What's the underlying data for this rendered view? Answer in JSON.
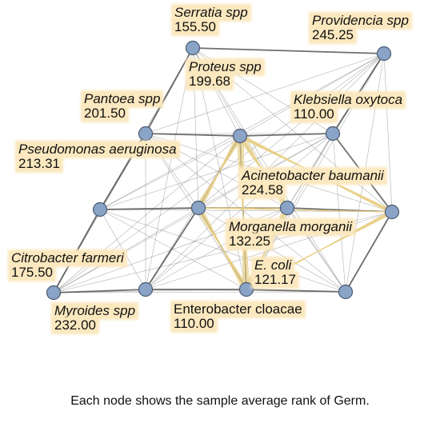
{
  "caption": "Each node shows the sample average rank of Germ.",
  "nodes": [
    {
      "id": "serratia",
      "name": "Serratia spp",
      "value": "155.50"
    },
    {
      "id": "providencia",
      "name": "Providencia spp",
      "value": "245.25"
    },
    {
      "id": "proteus",
      "name": "Proteus spp",
      "value": "199.68"
    },
    {
      "id": "pantoea",
      "name": "Pantoea spp",
      "value": "201.50"
    },
    {
      "id": "klebsiella",
      "name": "Klebsiella oxytoca",
      "value": "110.00"
    },
    {
      "id": "pseudomonas",
      "name": "Pseudomonas aeruginosa",
      "value": "213.31"
    },
    {
      "id": "acinetobacter",
      "name": "Acinetobacter baumanii",
      "value": "224.58"
    },
    {
      "id": "morganella",
      "name": "Morganella morganii",
      "value": "132.25"
    },
    {
      "id": "citrobacter",
      "name": "Citrobacter farmeri",
      "value": "175.50"
    },
    {
      "id": "ecoli",
      "name": "E. coli",
      "value": "121.17"
    },
    {
      "id": "myroides",
      "name": "Myroides spp",
      "value": "232.00"
    },
    {
      "id": "enterobacter",
      "name": "Enterobacter cloacae",
      "value": "110.00"
    },
    {
      "id": "left-mid",
      "name": "",
      "value": ""
    },
    {
      "id": "right-mid",
      "name": "",
      "value": ""
    }
  ],
  "colors": {
    "node_fill": "#8aa4c8",
    "node_stroke": "#4a5a70",
    "edge": "#555555",
    "highlight_edge": "#e8cf86",
    "label_bg": "#fbe8bf"
  }
}
